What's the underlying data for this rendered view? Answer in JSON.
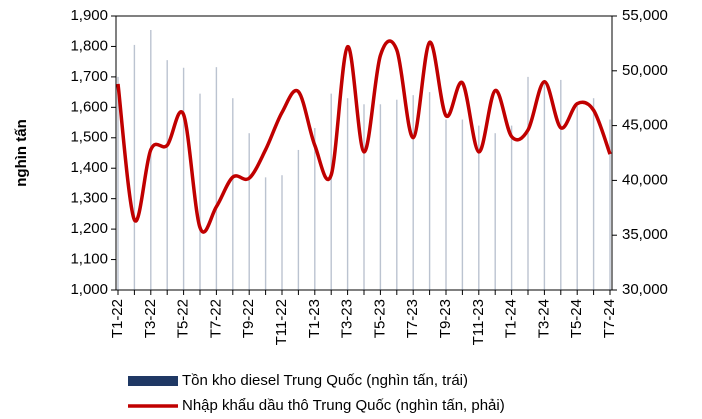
{
  "chart_data": {
    "type": "bar_line",
    "y_label": "nghìn tấn",
    "categories": [
      "T1-22",
      null,
      "T3-22",
      null,
      "T5-22",
      null,
      "T7-22",
      null,
      "T9-22",
      null,
      "T11-22",
      null,
      "T1-23",
      null,
      "T3-23",
      null,
      "T5-23",
      null,
      "T7-23",
      null,
      "T9-23",
      null,
      "T11-23",
      null,
      "T1-24",
      null,
      "T3-24",
      null,
      "T5-24",
      null,
      "T7-24"
    ],
    "series": [
      {
        "name": "Tồn kho diesel Trung Quốc (nghìn tấn, trái)",
        "color": "#1f3864",
        "type": "bar",
        "values": [
          1700,
          1805,
          1854,
          1755,
          1730,
          1645,
          1732,
          1630,
          1515,
          1370,
          1377,
          1460,
          1532,
          1645,
          1630,
          1610,
          1610,
          1625,
          1640,
          1650,
          1560,
          1560,
          1540,
          1515,
          1540,
          1700,
          1690,
          1690,
          1605,
          1630,
          1560
        ]
      },
      {
        "name": "Nhập khẩu dầu thô Trung Quốc (nghìn tấn, phải)",
        "color": "#c00000",
        "type": "line",
        "axis": "y2",
        "values": [
          48800,
          36400,
          42800,
          43200,
          46000,
          35700,
          37600,
          40300,
          40200,
          42800,
          46200,
          48100,
          43200,
          40500,
          52200,
          42600,
          51400,
          51900,
          43900,
          52600,
          45900,
          48900,
          42600,
          48200,
          44000,
          44600,
          49000,
          44800,
          47000,
          46400,
          42400
        ]
      }
    ],
    "ylim": [
      1000,
      1900
    ],
    "yticks": [
      {
        "value": 1000,
        "label": "1,000"
      },
      {
        "value": 1100,
        "label": "1,100"
      },
      {
        "value": 1200,
        "label": "1,200"
      },
      {
        "value": 1300,
        "label": "1,300"
      },
      {
        "value": 1400,
        "label": "1,400"
      },
      {
        "value": 1500,
        "label": "1,500"
      },
      {
        "value": 1600,
        "label": "1,600"
      },
      {
        "value": 1700,
        "label": "1,700"
      },
      {
        "value": 1800,
        "label": "1,800"
      },
      {
        "value": 1900,
        "label": "1,900"
      }
    ],
    "y2lim": [
      30000,
      55000
    ],
    "y2ticks": [
      {
        "value": 30000,
        "label": "30,000"
      },
      {
        "value": 35000,
        "label": "35,000"
      },
      {
        "value": 40000,
        "label": "40,000"
      },
      {
        "value": 45000,
        "label": "45,000"
      },
      {
        "value": 50000,
        "label": "50,000"
      },
      {
        "value": 55000,
        "label": "55,000"
      }
    ],
    "grid": false
  }
}
